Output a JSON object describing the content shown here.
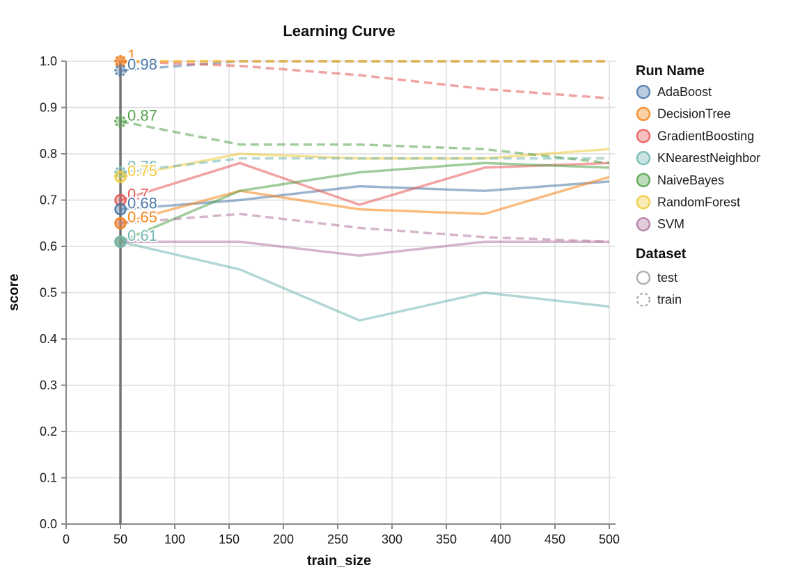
{
  "title": "Learning Curve",
  "legend": {
    "run_title": "Run Name",
    "runs": [
      {
        "label": "AdaBoost",
        "color": "#4c78a8"
      },
      {
        "label": "DecisionTree",
        "color": "#f58518"
      },
      {
        "label": "GradientBoosting",
        "color": "#e45756"
      },
      {
        "label": "KNearestNeighbor",
        "color": "#72b7b2"
      },
      {
        "label": "NaiveBayes",
        "color": "#54a24b"
      },
      {
        "label": "RandomForest",
        "color": "#eeca3b"
      },
      {
        "label": "SVM",
        "color": "#b279a2"
      }
    ],
    "dataset_title": "Dataset",
    "datasets": [
      {
        "label": "test",
        "dashed": false
      },
      {
        "label": "train",
        "dashed": true
      }
    ]
  },
  "colors": {
    "grid": "#dddddd",
    "axis": "#888888",
    "rule": "#666666",
    "tick_text": "#1b1b1b"
  },
  "chart_data": {
    "type": "line",
    "title": "Learning Curve",
    "xlabel": "train_size",
    "ylabel": "score",
    "xlim": [
      0,
      507
    ],
    "ylim": [
      0.0,
      1.0
    ],
    "grid": true,
    "legend_position": "right",
    "x_ticks": [
      "0",
      "50",
      "100",
      "150",
      "200",
      "250",
      "300",
      "350",
      "400",
      "450",
      "500"
    ],
    "y_ticks": [
      "0.0",
      "0.1",
      "0.2",
      "0.3",
      "0.4",
      "0.5",
      "0.6",
      "0.7",
      "0.8",
      "0.9",
      "1.0"
    ],
    "rule_x": 50,
    "x": [
      50,
      160,
      270,
      385,
      500
    ],
    "series": [
      {
        "run": "AdaBoost",
        "dataset": "test",
        "values": [
          0.68,
          0.7,
          0.73,
          0.72,
          0.74
        ]
      },
      {
        "run": "DecisionTree",
        "dataset": "test",
        "values": [
          0.65,
          0.72,
          0.68,
          0.67,
          0.75
        ]
      },
      {
        "run": "GradientBoosting",
        "dataset": "test",
        "values": [
          0.7,
          0.78,
          0.69,
          0.77,
          0.78
        ]
      },
      {
        "run": "KNearestNeighbor",
        "dataset": "test",
        "values": [
          0.61,
          0.55,
          0.44,
          0.5,
          0.47
        ]
      },
      {
        "run": "NaiveBayes",
        "dataset": "test",
        "values": [
          0.61,
          0.72,
          0.76,
          0.78,
          0.77
        ]
      },
      {
        "run": "RandomForest",
        "dataset": "test",
        "values": [
          0.75,
          0.8,
          0.79,
          0.79,
          0.81
        ]
      },
      {
        "run": "SVM",
        "dataset": "test",
        "values": [
          0.61,
          0.61,
          0.58,
          0.61,
          0.61
        ]
      },
      {
        "run": "AdaBoost",
        "dataset": "train",
        "values": [
          0.98,
          1.0,
          1.0,
          1.0,
          1.0
        ]
      },
      {
        "run": "DecisionTree",
        "dataset": "train",
        "values": [
          1.0,
          1.0,
          1.0,
          1.0,
          1.0
        ]
      },
      {
        "run": "GradientBoosting",
        "dataset": "train",
        "values": [
          1.0,
          0.99,
          0.97,
          0.94,
          0.92
        ]
      },
      {
        "run": "KNearestNeighbor",
        "dataset": "train",
        "values": [
          0.76,
          0.79,
          0.79,
          0.79,
          0.79
        ]
      },
      {
        "run": "NaiveBayes",
        "dataset": "train",
        "values": [
          0.87,
          0.82,
          0.82,
          0.81,
          0.78
        ]
      },
      {
        "run": "RandomForest",
        "dataset": "train",
        "values": [
          1.0,
          1.0,
          1.0,
          1.0,
          1.0
        ]
      },
      {
        "run": "SVM",
        "dataset": "train",
        "values": [
          0.65,
          0.67,
          0.64,
          0.62,
          0.61
        ]
      }
    ],
    "annotations": [
      {
        "text": "1",
        "value": 1.0,
        "run": "DecisionTree",
        "dataset": "train"
      },
      {
        "text": "0.98",
        "value": 0.98,
        "run": "AdaBoost",
        "dataset": "train"
      },
      {
        "text": "0.87",
        "value": 0.87,
        "run": "NaiveBayes",
        "dataset": "train"
      },
      {
        "text": "0.76",
        "value": 0.76,
        "run": "KNearestNeighbor",
        "dataset": "train"
      },
      {
        "text": "0.75",
        "value": 0.75,
        "run": "RandomForest",
        "dataset": "test"
      },
      {
        "text": "0.7",
        "value": 0.7,
        "run": "GradientBoosting",
        "dataset": "test"
      },
      {
        "text": "0.68",
        "value": 0.68,
        "run": "AdaBoost",
        "dataset": "test"
      },
      {
        "text": "0.65",
        "value": 0.65,
        "run": "DecisionTree",
        "dataset": "test"
      },
      {
        "text": "0.61",
        "value": 0.61,
        "run": "KNearestNeighbor",
        "dataset": "test"
      }
    ]
  }
}
